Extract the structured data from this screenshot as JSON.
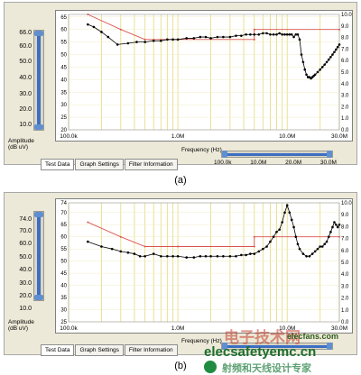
{
  "panels": [
    {
      "id": "a",
      "caption": "(a)",
      "y_left_ticks": [
        "20",
        "25",
        "30",
        "35",
        "40",
        "45",
        "50",
        "55",
        "60",
        "65"
      ],
      "y_right_ticks": [
        "0.0",
        "1.0",
        "2.0",
        "3.0",
        "4.0",
        "5.0",
        "6.0",
        "7.0",
        "8.0",
        "9.0",
        "10.0"
      ],
      "x_ticks": [
        "100.0k",
        "1.0M",
        "10.0M",
        "30.0M"
      ],
      "slider_labels": [
        "66.0",
        "60.0",
        "50.0",
        "40.0",
        "30.0",
        "20.0",
        "10.0"
      ],
      "amplitude_label": [
        "Amplitude",
        "(dB uV)"
      ],
      "freq_label": "Frequency (Hz)",
      "range_ticks": [
        "100.0k",
        "10.0M",
        "20.0M",
        "30.0M"
      ],
      "tabs": [
        "Test Data",
        "Graph Settings",
        "Filter Information"
      ]
    },
    {
      "id": "b",
      "caption": "(b)",
      "y_left_ticks": [
        "25",
        "30",
        "35",
        "40",
        "45",
        "50",
        "55",
        "60",
        "65",
        "70",
        "74"
      ],
      "y_right_ticks": [
        "0.0",
        "1.0",
        "2.0",
        "3.0",
        "4.0",
        "5.0",
        "6.0",
        "7.0",
        "8.0",
        "9.0",
        "10.0"
      ],
      "x_ticks": [
        "100.0k",
        "1.0M",
        "10.0M",
        "30.0M"
      ],
      "slider_labels": [
        "74.0",
        "70.0",
        "60.0",
        "50.0",
        "40.0",
        "30.0",
        "20.0",
        "10.0"
      ],
      "amplitude_label": [
        "Amplitude",
        "(dB uV)"
      ],
      "freq_label": "Frequency (Hz)",
      "tabs": [
        "Test Data",
        "Graph Settings",
        "Filter Information"
      ]
    }
  ],
  "watermark": {
    "site": "elecfans.com",
    "cn_title": "电子技术网",
    "cn_sub": "射频和天线设计专家",
    "overlay": "elecsafetyemc.cn"
  },
  "colors": {
    "limit_line": "#d9534f",
    "data_line": "#000000",
    "grid_line": "#e6de8a",
    "slider_blue": "#3c6fc2"
  },
  "chart_data": [
    {
      "type": "line",
      "x_scale": "log",
      "xlim": [
        100000,
        30000000
      ],
      "ylim": [
        20,
        66
      ],
      "ylabel": "Amplitude (dB uV)",
      "xlabel": "Frequency (Hz)",
      "grid": true,
      "series": [
        {
          "x": [
            150000,
            300000,
            500000,
            1000000,
            5000000,
            5000000,
            30000000
          ],
          "values": [
            66,
            60,
            56,
            56,
            56,
            60,
            60
          ]
        },
        {
          "x": [
            150000,
            170000,
            200000,
            230000,
            280000,
            350000,
            420000,
            500000,
            600000,
            700000,
            800000,
            900000,
            1000000,
            1200000,
            1400000,
            1600000,
            1800000,
            2000000,
            2300000,
            2600000,
            3000000,
            3400000,
            3800000,
            4200000,
            4600000,
            5000000,
            5500000,
            6000000,
            6500000,
            7000000,
            7500000,
            8000000,
            8500000,
            9000000,
            9500000,
            10000000,
            10500000,
            11000000,
            11500000,
            12000000,
            12500000,
            13000000,
            13500000,
            14000000,
            14500000,
            15000000,
            15500000,
            16000000,
            16500000,
            17000000,
            17500000,
            18000000,
            19000000,
            20000000,
            21000000,
            22000000,
            23000000,
            24000000,
            25000000,
            26000000,
            27000000,
            28000000,
            29000000,
            30000000
          ],
          "values": [
            62,
            61,
            59,
            57,
            54,
            54.5,
            55,
            55,
            55.5,
            55.5,
            56,
            56,
            56,
            56.5,
            56.5,
            57,
            57,
            56.5,
            57,
            57,
            57,
            57.5,
            57.5,
            58,
            58,
            58,
            58,
            58.5,
            58.5,
            58,
            58,
            58,
            58.5,
            58,
            58,
            58,
            58,
            58,
            57,
            58,
            58,
            56,
            50,
            47,
            44,
            42,
            41,
            41,
            40.5,
            41,
            41.5,
            42,
            43,
            44,
            45,
            46,
            47,
            48,
            49,
            50,
            51,
            52,
            53,
            54
          ]
        }
      ]
    },
    {
      "type": "line",
      "x_scale": "log",
      "xlim": [
        100000,
        30000000
      ],
      "ylim": [
        25,
        74
      ],
      "ylabel": "Amplitude (dB uV)",
      "xlabel": "Frequency (Hz)",
      "grid": true,
      "series": [
        {
          "x": [
            150000,
            300000,
            500000,
            1000000,
            5000000,
            5000000,
            30000000
          ],
          "values": [
            66,
            60,
            56,
            56,
            56,
            60,
            60
          ]
        },
        {
          "x": [
            150000,
            200000,
            250000,
            300000,
            350000,
            400000,
            450000,
            500000,
            600000,
            700000,
            800000,
            900000,
            1000000,
            1200000,
            1400000,
            1600000,
            1800000,
            2000000,
            2300000,
            2600000,
            3000000,
            3400000,
            3800000,
            4200000,
            4600000,
            5000000,
            5500000,
            6000000,
            6500000,
            7000000,
            7500000,
            8000000,
            8500000,
            9000000,
            9500000,
            10000000,
            10500000,
            11000000,
            11500000,
            12000000,
            12500000,
            13000000,
            14000000,
            15000000,
            16000000,
            17000000,
            18000000,
            19000000,
            20000000,
            21000000,
            22000000,
            23000000,
            24000000,
            25000000,
            26000000,
            27000000,
            28000000,
            29000000,
            30000000
          ],
          "values": [
            58,
            56,
            55,
            54,
            53.5,
            53,
            52,
            52,
            53,
            52,
            52,
            52,
            52,
            51.5,
            51.5,
            52,
            52,
            52,
            52,
            52,
            52,
            52,
            52.5,
            52.5,
            53,
            53,
            54,
            55,
            56,
            58,
            60,
            62,
            63,
            66,
            70,
            73,
            70,
            67,
            64,
            60,
            57,
            55,
            53,
            52,
            52,
            53,
            54,
            55,
            56,
            56,
            57,
            58,
            60,
            62,
            64,
            66,
            65,
            64,
            65
          ]
        }
      ]
    }
  ]
}
